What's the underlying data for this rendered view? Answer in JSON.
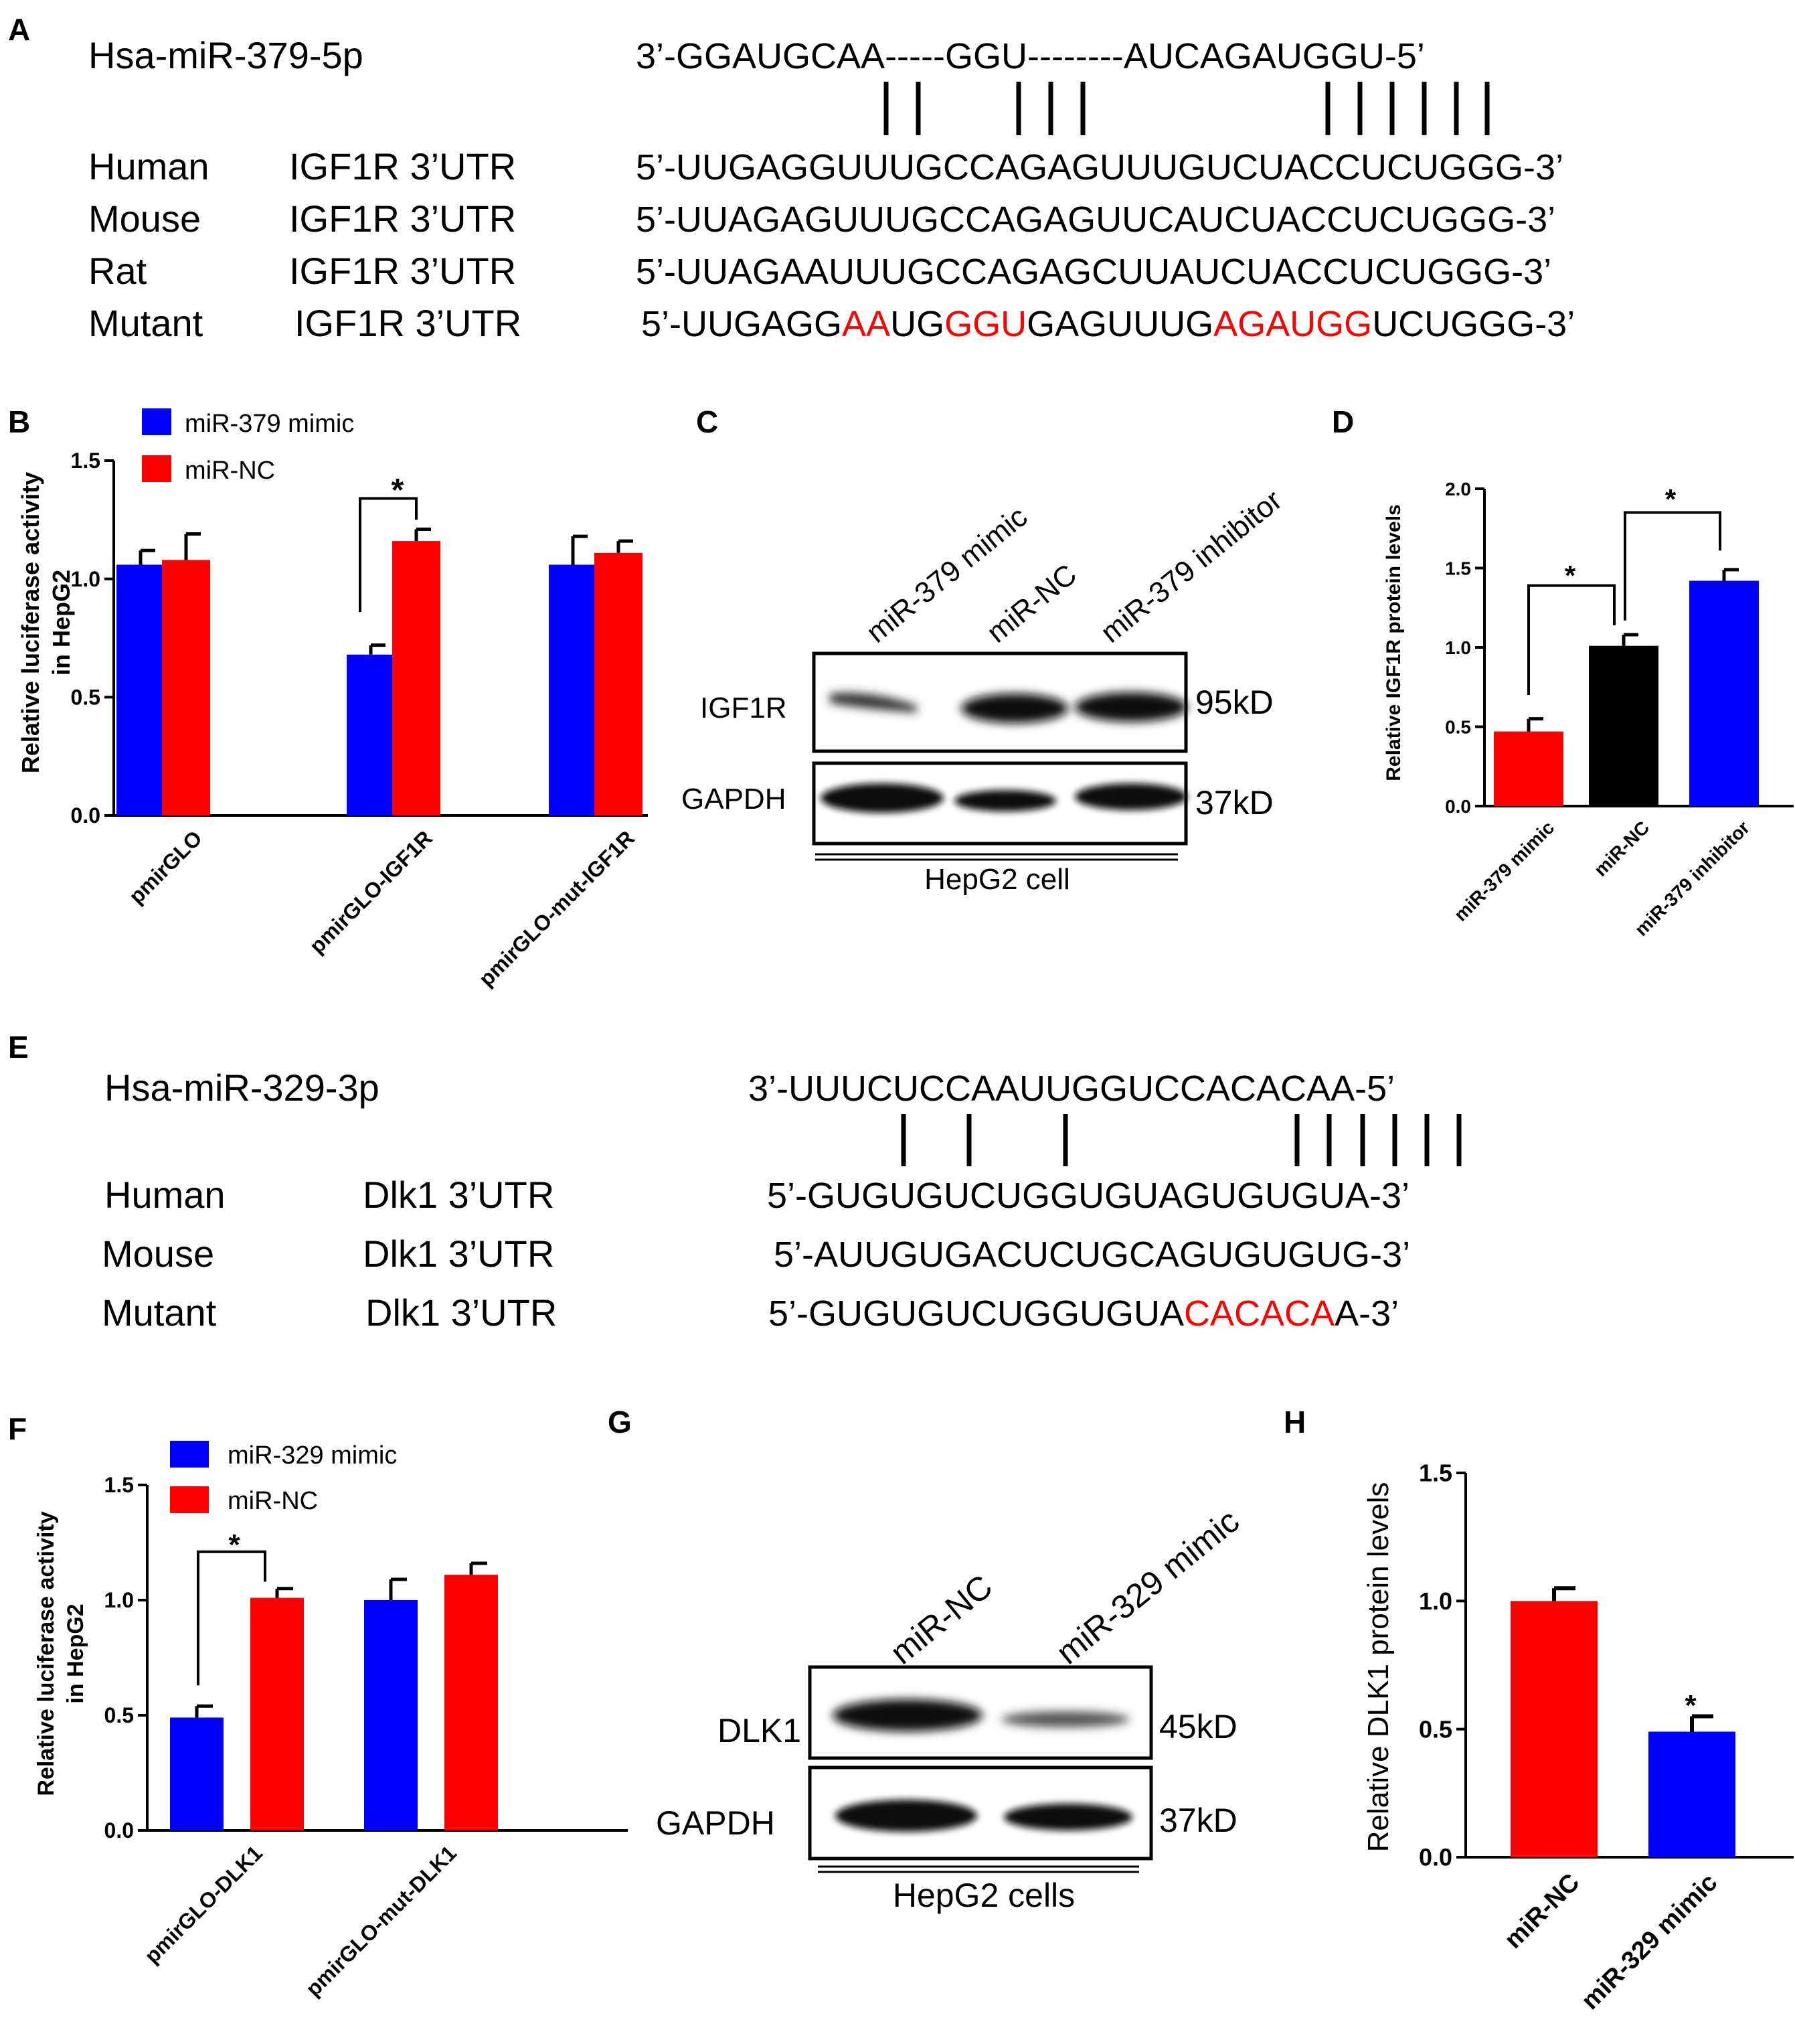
{
  "panels": {
    "A": {
      "label": "A",
      "mirna_name": "Hsa-miR-379-5p",
      "mirna_seq": "3’-GGAUGCAA-----GGU--------AUCAGAUGGU-5’",
      "rows": [
        {
          "species": "Human",
          "gene": "IGF1R 3’UTR",
          "seq": "5’-UUGAGGUUUGCCAGAGUUUGUCUACCUCUGGG-3’"
        },
        {
          "species": "Mouse",
          "gene": "IGF1R 3’UTR",
          "seq": "5’-UUAGAGUUUGCCAGAGUUCAUCUACCUCUGGG-3’"
        },
        {
          "species": "Rat",
          "gene": "IGF1R 3’UTR",
          "seq": "5’-UUAGAAUUUGCCAGAGCUUAUCUACCUCUGGG-3’"
        },
        {
          "species": "Mutant",
          "gene": "IGF1R 3’UTR",
          "seq_parts": [
            {
              "t": "5’-UUGAGG",
              "c": "black"
            },
            {
              "t": "AA",
              "c": "red"
            },
            {
              "t": "UG",
              "c": "black"
            },
            {
              "t": "GGU",
              "c": "red"
            },
            {
              "t": "GAGUUUG",
              "c": "black"
            },
            {
              "t": "AGAUGG",
              "c": "red"
            },
            {
              "t": "UCUGGG-3’",
              "c": "black"
            }
          ]
        }
      ]
    },
    "B": {
      "label": "B",
      "legend": [
        "miR-379 mimic",
        "miR-NC"
      ],
      "ylabel_line1": "Relative luciferase activity",
      "ylabel_line2": "in HepG2",
      "significance": "*"
    },
    "C": {
      "label": "C",
      "lanes": [
        "miR-379 mimic",
        "miR-NC",
        "miR-379 inhibitor"
      ],
      "rows": [
        {
          "name": "IGF1R",
          "size": "95kD"
        },
        {
          "name": "GAPDH",
          "size": "37kD"
        }
      ],
      "cell": "HepG2 cell"
    },
    "D": {
      "label": "D",
      "ylabel": "Relative IGF1R protein levels",
      "significance": "*"
    },
    "E": {
      "label": "E",
      "mirna_name": "Hsa-miR-329-3p",
      "mirna_seq": "3’-UUUCUCCAAUUGGUCCACACAA-5’",
      "rows": [
        {
          "species": "Human",
          "gene": "Dlk1 3’UTR",
          "seq": "5’-GUGUGUCUGGUGUAGUGUGUA-3’"
        },
        {
          "species": "Mouse",
          "gene": "Dlk1 3’UTR",
          "seq": "5’-AUUGUGACUCUGCAGUGUGUG-3’"
        },
        {
          "species": "Mutant",
          "gene": "Dlk1 3’UTR",
          "seq_parts": [
            {
              "t": "5’-GUGUGUCUGGUGUA",
              "c": "black"
            },
            {
              "t": "CACACA",
              "c": "red"
            },
            {
              "t": "A-3’",
              "c": "black"
            }
          ]
        }
      ]
    },
    "F": {
      "label": "F",
      "legend": [
        "miR-329 mimic",
        "miR-NC"
      ],
      "ylabel_line1": "Relative luciferase activity",
      "ylabel_line2": "in HepG2",
      "significance": "*"
    },
    "G": {
      "label": "G",
      "lanes": [
        "miR-NC",
        "miR-329 mimic"
      ],
      "rows": [
        {
          "name": "DLK1",
          "size": "45kD"
        },
        {
          "name": "GAPDH",
          "size": "37kD"
        }
      ],
      "cell": "HepG2 cells"
    },
    "H": {
      "label": "H",
      "ylabel": "Relative DLK1 protein levels",
      "significance": "*"
    }
  },
  "colors": {
    "blue": "#0000ff",
    "red": "#ff0000",
    "black": "#000000"
  },
  "chart_data": [
    {
      "panel": "B",
      "type": "bar",
      "categories": [
        "pmirGLO",
        "pmirGLO-IGF1R",
        "pmirGLO-mut-IGF1R"
      ],
      "series": [
        {
          "name": "miR-379 mimic",
          "color": "#0000ff",
          "values": [
            1.06,
            0.68,
            1.06
          ],
          "errors": [
            0.06,
            0.04,
            0.12
          ]
        },
        {
          "name": "miR-NC",
          "color": "#ff0000",
          "values": [
            1.08,
            1.16,
            1.11
          ],
          "errors": [
            0.11,
            0.05,
            0.05
          ]
        }
      ],
      "ylim": [
        0,
        1.5
      ],
      "yticks": [
        "0.0",
        "0.5",
        "1.0",
        "1.5"
      ]
    },
    {
      "panel": "D",
      "type": "bar",
      "categories": [
        "miR-379 mimic",
        "miR-NC",
        "miR-379 inhibitor"
      ],
      "values": [
        0.47,
        1.01,
        1.42
      ],
      "errors": [
        0.08,
        0.07,
        0.07
      ],
      "colors": [
        "#ff0000",
        "#000000",
        "#0000ff"
      ],
      "ylim": [
        0,
        2.0
      ],
      "yticks": [
        "0.0",
        "0.5",
        "1.0",
        "1.5",
        "2.0"
      ]
    },
    {
      "panel": "F",
      "type": "bar",
      "categories": [
        "pmirGLO-DLK1",
        "pmirGLO-mut-DLK1"
      ],
      "series": [
        {
          "name": "miR-329 mimic",
          "color": "#0000ff",
          "values": [
            0.49,
            1.0
          ],
          "errors": [
            0.05,
            0.09
          ]
        },
        {
          "name": "miR-NC",
          "color": "#ff0000",
          "values": [
            1.01,
            1.11
          ],
          "errors": [
            0.04,
            0.05
          ]
        }
      ],
      "ylim": [
        0,
        1.5
      ],
      "yticks": [
        "0.0",
        "0.5",
        "1.0",
        "1.5"
      ]
    },
    {
      "panel": "H",
      "type": "bar",
      "categories": [
        "miR-NC",
        "miR-329 mimic"
      ],
      "values": [
        1.0,
        0.49
      ],
      "errors": [
        0.05,
        0.06
      ],
      "colors": [
        "#ff0000",
        "#0000ff"
      ],
      "ylim": [
        0,
        1.5
      ],
      "yticks": [
        "0.0",
        "0.5",
        "1.0",
        "1.5"
      ]
    }
  ]
}
